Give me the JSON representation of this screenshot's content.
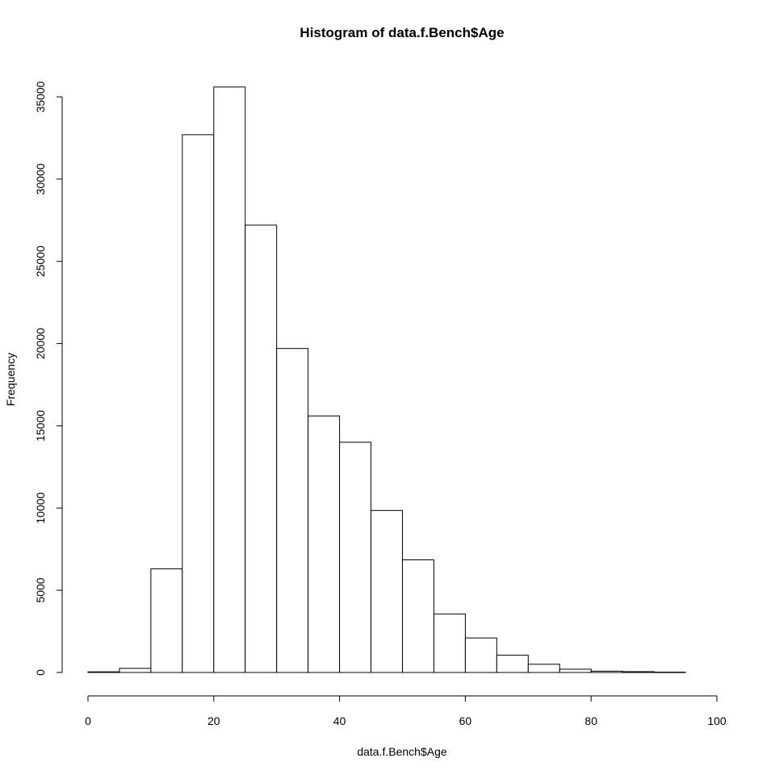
{
  "chart_data": {
    "type": "bar",
    "title": "Histogram of data.f.Bench$Age",
    "xlabel": "data.f.Bench$Age",
    "ylabel": "Frequency",
    "bin_edges": [
      0,
      5,
      10,
      15,
      20,
      25,
      30,
      35,
      40,
      45,
      50,
      55,
      60,
      65,
      70,
      75,
      80,
      85,
      90,
      95
    ],
    "values": [
      40,
      250,
      6300,
      32700,
      35600,
      27200,
      19700,
      15600,
      14000,
      9850,
      6850,
      3550,
      2100,
      1050,
      500,
      200,
      80,
      50,
      20
    ],
    "xlim": [
      0,
      100
    ],
    "ylim": [
      0,
      35000
    ],
    "x_ticks": [
      "0",
      "20",
      "40",
      "60",
      "80",
      "100"
    ],
    "y_ticks": [
      "0",
      "5000",
      "10000",
      "15000",
      "20000",
      "25000",
      "30000",
      "35000"
    ],
    "grid": false,
    "bar_color": "#ffffff",
    "edge_color": "#000000"
  }
}
